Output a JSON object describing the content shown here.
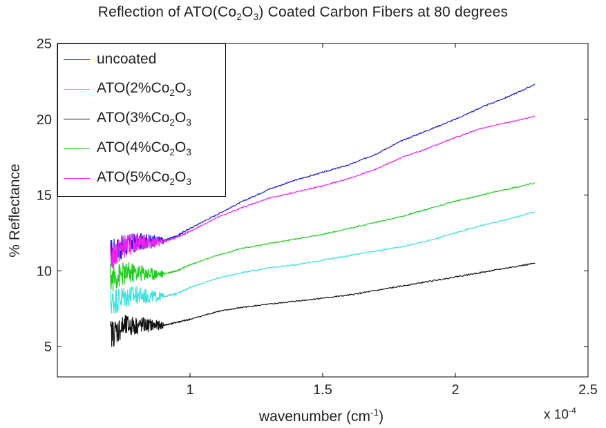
{
  "chart_data": {
    "type": "line",
    "title_parts": {
      "pre": "Reflection of ATO(Co",
      "sub1": "2",
      "mid": "O",
      "sub2": "3",
      "post": ") Coated Carbon Fibers at 80 degrees"
    },
    "ylabel": "% Reflectance",
    "xlabel_parts": {
      "pre": "wavenumber (cm",
      "sup": "-1",
      "post": ")"
    },
    "x_exponent_parts": {
      "pre": "x 10",
      "sup": "-4"
    },
    "xlim": [
      0.5,
      2.5
    ],
    "ylim": [
      3,
      25
    ],
    "x_ticks": [
      "1",
      "1.5",
      "2",
      "2.5"
    ],
    "x_tick_values": [
      1,
      1.5,
      2,
      2.5
    ],
    "y_ticks": [
      "5",
      "10",
      "15",
      "20",
      "25"
    ],
    "y_tick_values": [
      5,
      10,
      15,
      20,
      25
    ],
    "grid": false,
    "legend_position": "top-left",
    "series": [
      {
        "name": "uncoated",
        "label_parts": {
          "pre": "uncoated",
          "sub1": "",
          "mid": "",
          "sub2": "",
          "post": ""
        },
        "color": "#1a1ad8",
        "x": [
          0.7,
          0.75,
          0.8,
          0.85,
          0.9,
          0.95,
          1.0,
          1.1,
          1.2,
          1.3,
          1.4,
          1.5,
          1.6,
          1.7,
          1.8,
          1.9,
          2.0,
          2.1,
          2.2,
          2.3
        ],
        "y": [
          11.2,
          11.6,
          11.9,
          12.0,
          12.0,
          12.3,
          12.8,
          13.7,
          14.6,
          15.4,
          16.0,
          16.5,
          17.0,
          17.7,
          18.6,
          19.3,
          20.0,
          20.8,
          21.5,
          22.3
        ]
      },
      {
        "name": "ATO(2%Co2O3",
        "label_parts": {
          "pre": "ATO(2%Co",
          "sub1": "2",
          "mid": "O",
          "sub2": "3",
          "post": ""
        },
        "color": "#3fe0e0",
        "x": [
          0.7,
          0.75,
          0.8,
          0.85,
          0.9,
          0.95,
          1.0,
          1.1,
          1.2,
          1.3,
          1.4,
          1.5,
          1.6,
          1.7,
          1.8,
          1.9,
          2.0,
          2.1,
          2.2,
          2.3
        ],
        "y": [
          7.9,
          8.3,
          8.4,
          8.3,
          8.3,
          8.5,
          8.9,
          9.5,
          9.9,
          10.2,
          10.4,
          10.7,
          11.0,
          11.3,
          11.6,
          12.0,
          12.5,
          13.0,
          13.4,
          13.9
        ]
      },
      {
        "name": "ATO(3%Co2O3",
        "label_parts": {
          "pre": "ATO(3%Co",
          "sub1": "2",
          "mid": "O",
          "sub2": "3",
          "post": ""
        },
        "color": "#111111",
        "x": [
          0.7,
          0.75,
          0.8,
          0.85,
          0.9,
          0.95,
          1.0,
          1.1,
          1.2,
          1.3,
          1.4,
          1.5,
          1.6,
          1.7,
          1.8,
          1.9,
          2.0,
          2.1,
          2.2,
          2.3
        ],
        "y": [
          5.8,
          6.3,
          6.4,
          6.4,
          6.4,
          6.6,
          6.8,
          7.3,
          7.6,
          7.8,
          8.0,
          8.2,
          8.4,
          8.7,
          9.0,
          9.3,
          9.6,
          9.9,
          10.2,
          10.5
        ]
      },
      {
        "name": "ATO(4%Co2O3",
        "label_parts": {
          "pre": "ATO(4%Co",
          "sub1": "2",
          "mid": "O",
          "sub2": "3",
          "post": ""
        },
        "color": "#22cc22",
        "x": [
          0.7,
          0.75,
          0.8,
          0.85,
          0.9,
          0.95,
          1.0,
          1.1,
          1.2,
          1.3,
          1.4,
          1.5,
          1.6,
          1.7,
          1.8,
          1.9,
          2.0,
          2.1,
          2.2,
          2.3
        ],
        "y": [
          9.5,
          9.8,
          9.9,
          9.8,
          9.8,
          10.0,
          10.4,
          11.0,
          11.5,
          11.8,
          12.1,
          12.4,
          12.8,
          13.2,
          13.6,
          14.1,
          14.6,
          15.0,
          15.4,
          15.8
        ]
      },
      {
        "name": "ATO(5%Co2O3",
        "label_parts": {
          "pre": "ATO(5%Co",
          "sub1": "2",
          "mid": "O",
          "sub2": "3",
          "post": ""
        },
        "color": "#ee22ee",
        "x": [
          0.7,
          0.75,
          0.8,
          0.85,
          0.9,
          0.95,
          1.0,
          1.1,
          1.2,
          1.3,
          1.4,
          1.5,
          1.6,
          1.7,
          1.8,
          1.9,
          2.0,
          2.1,
          2.2,
          2.3
        ],
        "y": [
          10.8,
          11.6,
          11.9,
          11.9,
          11.9,
          12.2,
          12.6,
          13.5,
          14.2,
          14.8,
          15.2,
          15.6,
          16.1,
          16.7,
          17.5,
          18.1,
          18.8,
          19.4,
          19.8,
          20.2
        ]
      }
    ]
  }
}
